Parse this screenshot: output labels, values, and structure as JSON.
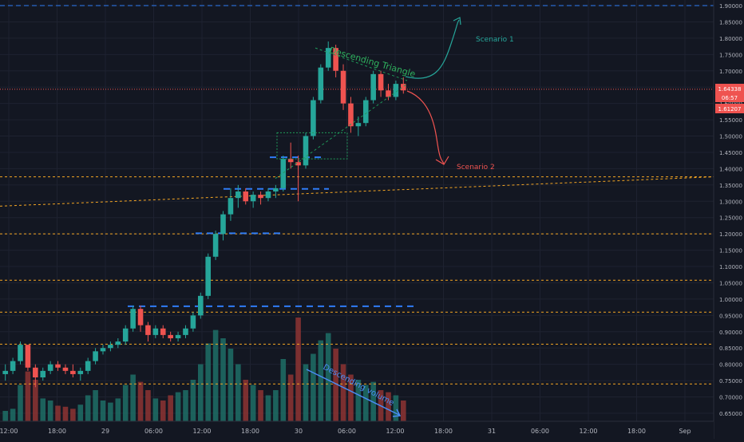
{
  "theme": {
    "background": "#131722",
    "grid": "#1e2230",
    "axis_text": "#b2b5be",
    "up": "#26a69a",
    "down": "#ef5350",
    "vol_up": "#1f6f66",
    "vol_down": "#8e3433",
    "orange": "#f5a623",
    "blue": "#2f7cf6",
    "dark_green": "#1b5e3a",
    "current_price_bg": "#ef5350"
  },
  "axis": {
    "y_labels": [
      "1.90000",
      "1.85000",
      "1.80000",
      "1.75000",
      "1.70000",
      "1.65000",
      "1.60000",
      "1.55000",
      "1.50000",
      "1.45000",
      "1.40000",
      "1.35000",
      "1.30000",
      "1.25000",
      "1.20000",
      "1.15000",
      "1.10000",
      "1.05000",
      "1.00000",
      "0.95000",
      "0.90000",
      "0.85000",
      "0.80000",
      "0.75000",
      "0.70000",
      "0.65000"
    ],
    "x_labels": [
      "12:00",
      "18:00",
      "29",
      "06:00",
      "12:00",
      "18:00",
      "30",
      "06:00",
      "12:00",
      "18:00",
      "31",
      "06:00",
      "12:00",
      "18:00",
      "Sep"
    ]
  },
  "price_tags": {
    "last": "1.64338",
    "countdown": "06:57",
    "second": "1.61207"
  },
  "annotations": {
    "triangle": "Descending Triangle",
    "scenario1": "Scenario 1",
    "scenario2": "Scenario 2",
    "volume": "Descending volume"
  },
  "chart_data": {
    "type": "candlestick",
    "ylim": [
      0.62,
      1.92
    ],
    "candles": [
      {
        "o": 0.77,
        "h": 0.8,
        "l": 0.75,
        "c": 0.78
      },
      {
        "o": 0.78,
        "h": 0.82,
        "l": 0.77,
        "c": 0.81
      },
      {
        "o": 0.81,
        "h": 0.87,
        "l": 0.8,
        "c": 0.86
      },
      {
        "o": 0.86,
        "h": 0.86,
        "l": 0.78,
        "c": 0.79
      },
      {
        "o": 0.79,
        "h": 0.8,
        "l": 0.73,
        "c": 0.76
      },
      {
        "o": 0.76,
        "h": 0.79,
        "l": 0.75,
        "c": 0.78
      },
      {
        "o": 0.78,
        "h": 0.81,
        "l": 0.77,
        "c": 0.8
      },
      {
        "o": 0.8,
        "h": 0.81,
        "l": 0.78,
        "c": 0.79
      },
      {
        "o": 0.79,
        "h": 0.8,
        "l": 0.77,
        "c": 0.78
      },
      {
        "o": 0.78,
        "h": 0.8,
        "l": 0.76,
        "c": 0.77
      },
      {
        "o": 0.77,
        "h": 0.79,
        "l": 0.75,
        "c": 0.78
      },
      {
        "o": 0.78,
        "h": 0.82,
        "l": 0.77,
        "c": 0.81
      },
      {
        "o": 0.81,
        "h": 0.85,
        "l": 0.8,
        "c": 0.84
      },
      {
        "o": 0.84,
        "h": 0.86,
        "l": 0.83,
        "c": 0.85
      },
      {
        "o": 0.85,
        "h": 0.87,
        "l": 0.84,
        "c": 0.86
      },
      {
        "o": 0.86,
        "h": 0.88,
        "l": 0.85,
        "c": 0.87
      },
      {
        "o": 0.87,
        "h": 0.92,
        "l": 0.86,
        "c": 0.91
      },
      {
        "o": 0.91,
        "h": 0.98,
        "l": 0.9,
        "c": 0.97
      },
      {
        "o": 0.97,
        "h": 0.98,
        "l": 0.9,
        "c": 0.92
      },
      {
        "o": 0.92,
        "h": 0.93,
        "l": 0.87,
        "c": 0.89
      },
      {
        "o": 0.89,
        "h": 0.92,
        "l": 0.88,
        "c": 0.91
      },
      {
        "o": 0.91,
        "h": 0.92,
        "l": 0.88,
        "c": 0.89
      },
      {
        "o": 0.89,
        "h": 0.9,
        "l": 0.87,
        "c": 0.88
      },
      {
        "o": 0.88,
        "h": 0.9,
        "l": 0.87,
        "c": 0.89
      },
      {
        "o": 0.89,
        "h": 0.92,
        "l": 0.88,
        "c": 0.91
      },
      {
        "o": 0.91,
        "h": 0.96,
        "l": 0.9,
        "c": 0.95
      },
      {
        "o": 0.95,
        "h": 1.02,
        "l": 0.94,
        "c": 1.01
      },
      {
        "o": 1.01,
        "h": 1.14,
        "l": 1.0,
        "c": 1.13
      },
      {
        "o": 1.13,
        "h": 1.21,
        "l": 1.12,
        "c": 1.2
      },
      {
        "o": 1.2,
        "h": 1.27,
        "l": 1.18,
        "c": 1.26
      },
      {
        "o": 1.26,
        "h": 1.34,
        "l": 1.24,
        "c": 1.31
      },
      {
        "o": 1.31,
        "h": 1.35,
        "l": 1.28,
        "c": 1.33
      },
      {
        "o": 1.33,
        "h": 1.34,
        "l": 1.29,
        "c": 1.3
      },
      {
        "o": 1.3,
        "h": 1.33,
        "l": 1.28,
        "c": 1.32
      },
      {
        "o": 1.32,
        "h": 1.33,
        "l": 1.29,
        "c": 1.31
      },
      {
        "o": 1.31,
        "h": 1.34,
        "l": 1.3,
        "c": 1.33
      },
      {
        "o": 1.33,
        "h": 1.35,
        "l": 1.31,
        "c": 1.34
      },
      {
        "o": 1.34,
        "h": 1.44,
        "l": 1.33,
        "c": 1.43
      },
      {
        "o": 1.43,
        "h": 1.48,
        "l": 1.4,
        "c": 1.42
      },
      {
        "o": 1.42,
        "h": 1.44,
        "l": 1.3,
        "c": 1.41
      },
      {
        "o": 1.41,
        "h": 1.51,
        "l": 1.4,
        "c": 1.5
      },
      {
        "o": 1.5,
        "h": 1.62,
        "l": 1.49,
        "c": 1.61
      },
      {
        "o": 1.61,
        "h": 1.72,
        "l": 1.6,
        "c": 1.71
      },
      {
        "o": 1.71,
        "h": 1.79,
        "l": 1.7,
        "c": 1.77
      },
      {
        "o": 1.77,
        "h": 1.78,
        "l": 1.68,
        "c": 1.7
      },
      {
        "o": 1.7,
        "h": 1.72,
        "l": 1.58,
        "c": 1.6
      },
      {
        "o": 1.6,
        "h": 1.62,
        "l": 1.51,
        "c": 1.53
      },
      {
        "o": 1.53,
        "h": 1.56,
        "l": 1.5,
        "c": 1.54
      },
      {
        "o": 1.54,
        "h": 1.62,
        "l": 1.53,
        "c": 1.61
      },
      {
        "o": 1.61,
        "h": 1.7,
        "l": 1.6,
        "c": 1.69
      },
      {
        "o": 1.69,
        "h": 1.7,
        "l": 1.62,
        "c": 1.64
      },
      {
        "o": 1.64,
        "h": 1.66,
        "l": 1.61,
        "c": 1.62
      },
      {
        "o": 1.62,
        "h": 1.67,
        "l": 1.61,
        "c": 1.66
      },
      {
        "o": 1.66,
        "h": 1.68,
        "l": 1.63,
        "c": 1.64
      }
    ],
    "volume": [
      0.1,
      0.12,
      0.35,
      0.48,
      0.4,
      0.22,
      0.2,
      0.15,
      0.14,
      0.12,
      0.16,
      0.25,
      0.3,
      0.2,
      0.18,
      0.22,
      0.35,
      0.45,
      0.38,
      0.3,
      0.22,
      0.2,
      0.25,
      0.28,
      0.3,
      0.4,
      0.55,
      0.75,
      0.88,
      0.8,
      0.7,
      0.55,
      0.4,
      0.35,
      0.3,
      0.25,
      0.3,
      0.6,
      0.45,
      1.0,
      0.55,
      0.65,
      0.78,
      0.85,
      0.7,
      0.55,
      0.45,
      0.4,
      0.35,
      0.38,
      0.3,
      0.28,
      0.25,
      0.2
    ],
    "horizontal_levels_dotted": [
      1.375,
      1.2,
      1.058,
      0.96,
      0.862,
      0.74
    ],
    "blue_dashed_levels": [
      1.9,
      1.435,
      1.338,
      1.202,
      0.978
    ],
    "current_price": 1.64338
  }
}
